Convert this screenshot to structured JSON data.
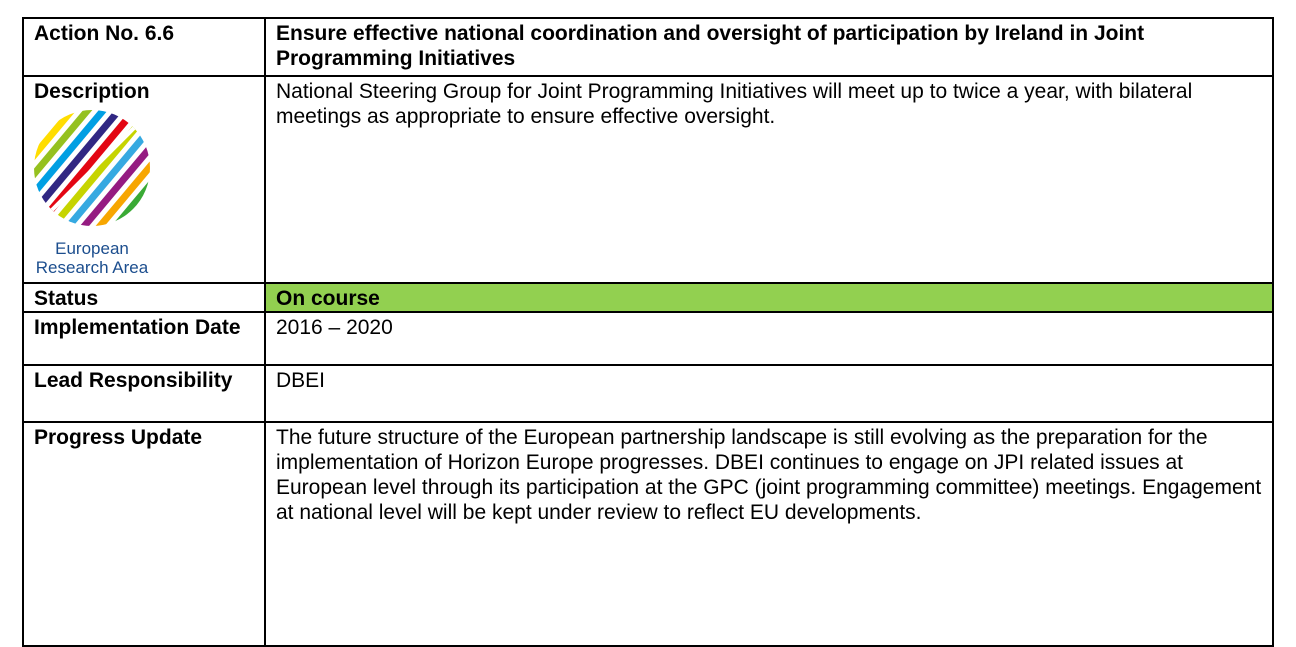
{
  "table": {
    "rows": [
      {
        "label": "Action No. 6.6",
        "content": "Ensure effective national coordination and oversight of participation by Ireland in Joint Programming Initiatives"
      },
      {
        "label": "Description",
        "content": "National Steering Group for Joint Programming Initiatives will meet up to twice a year, with bilateral meetings as appropriate to ensure effective oversight."
      },
      {
        "label": "Status",
        "content": "On course"
      },
      {
        "label": "Implementation Date",
        "content": "2016 – 2020"
      },
      {
        "label": "Lead Responsibility",
        "content": "DBEI"
      },
      {
        "label": "Progress Update",
        "content": "The future structure of the European partnership landscape is still evolving as the preparation for the implementation of Horizon Europe progresses. DBEI continues to engage on JPI related issues at European level through its participation at the GPC (joint programming committee) meetings. Engagement at national level will be kept under review to reflect EU developments."
      }
    ]
  },
  "logo": {
    "line1": "European",
    "line2": "Research Area"
  }
}
